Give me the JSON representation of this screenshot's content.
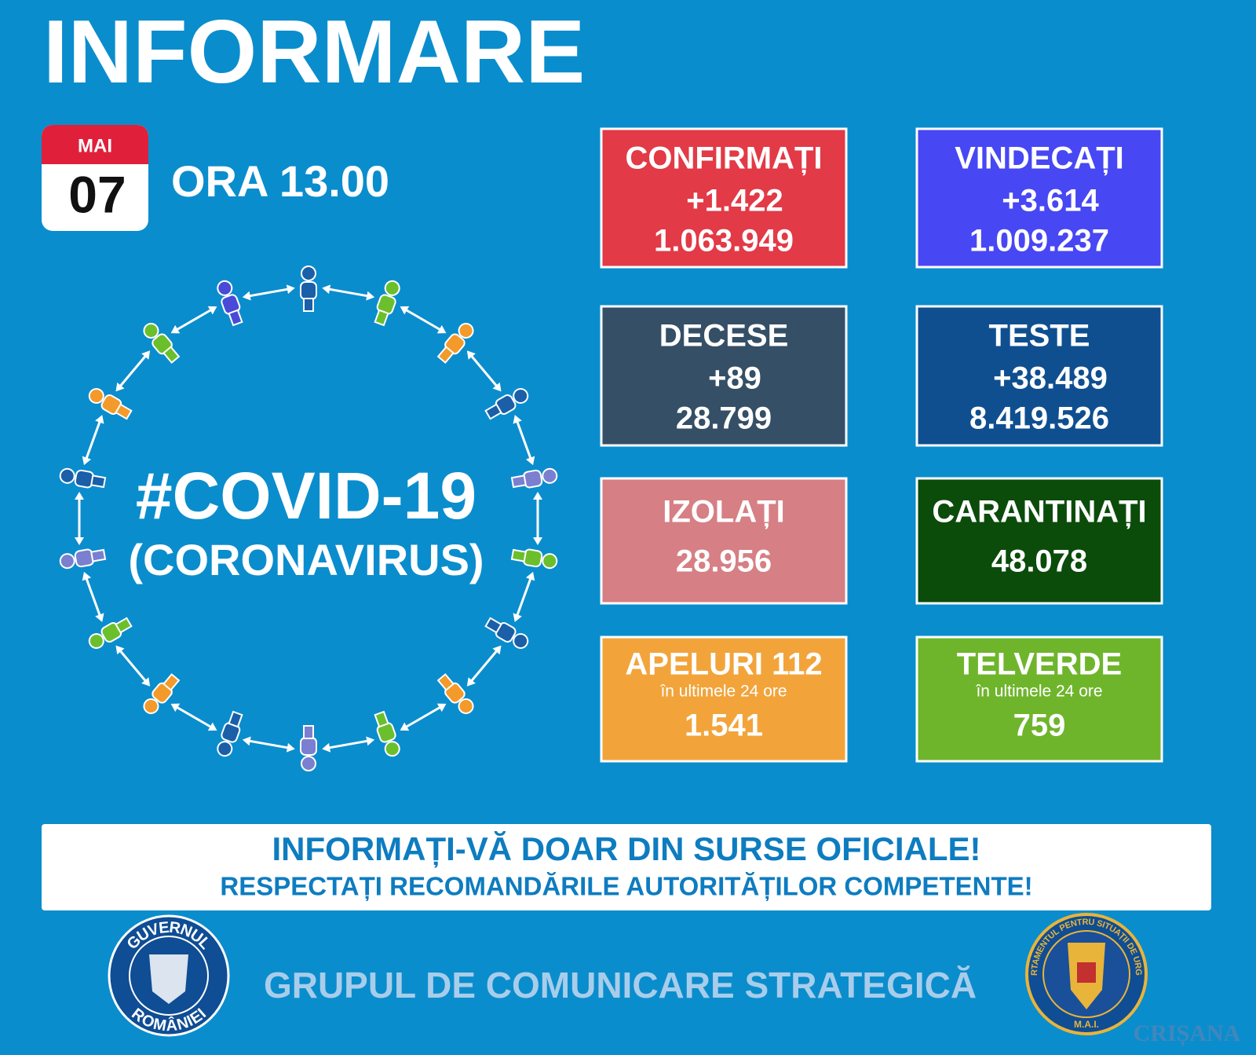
{
  "header": {
    "title": "INFORMARE",
    "month": "MAI",
    "day": "07",
    "time": "ORA 13.00"
  },
  "covid": {
    "hashtag": "#COVID-19",
    "name": "(CORONAVIRUS)"
  },
  "cards": [
    {
      "title": "CONFIRMAȚI",
      "delta": "+1.422",
      "total": "1.063.949",
      "color": "#e23a46"
    },
    {
      "title": "VINDECAȚI",
      "delta": "+3.614",
      "total": "1.009.237",
      "color": "#4747f4"
    },
    {
      "title": "DECESE",
      "delta": "+89",
      "total": "28.799",
      "color": "#344f66"
    },
    {
      "title": "TESTE",
      "delta": "+38.489",
      "total": "8.419.526",
      "color": "#0f4f90"
    },
    {
      "title": "IZOLAȚI",
      "total": "28.956",
      "color": "#d67f84"
    },
    {
      "title": "CARANTINAȚI",
      "total": "48.078",
      "color": "#0b4c0b"
    },
    {
      "title": "APELURI 112",
      "subtitle": "în ultimele 24 ore",
      "total": "1.541",
      "color": "#f2a43b"
    },
    {
      "title": "TELVERDE",
      "subtitle": "în ultimele 24 ore",
      "total": "759",
      "color": "#6fb52c"
    }
  ],
  "banner": {
    "line1": "INFORMAȚI-VĂ DOAR DIN SURSE OFICIALE!",
    "line2": "RESPECTAȚI RECOMANDĂRILE AUTORITĂȚILOR COMPETENTE!"
  },
  "footer": {
    "text": "GRUPUL DE COMUNICARE STRATEGICĂ",
    "left_logo": {
      "top": "GUVERNUL",
      "bottom": "ROMÂNIEI"
    },
    "right_logo": {
      "ring": "DEPARTAMENTUL PENTRU SITUAȚII DE URGENȚĂ",
      "bottom": "M.A.I."
    },
    "watermark": "CRIȘANA"
  }
}
